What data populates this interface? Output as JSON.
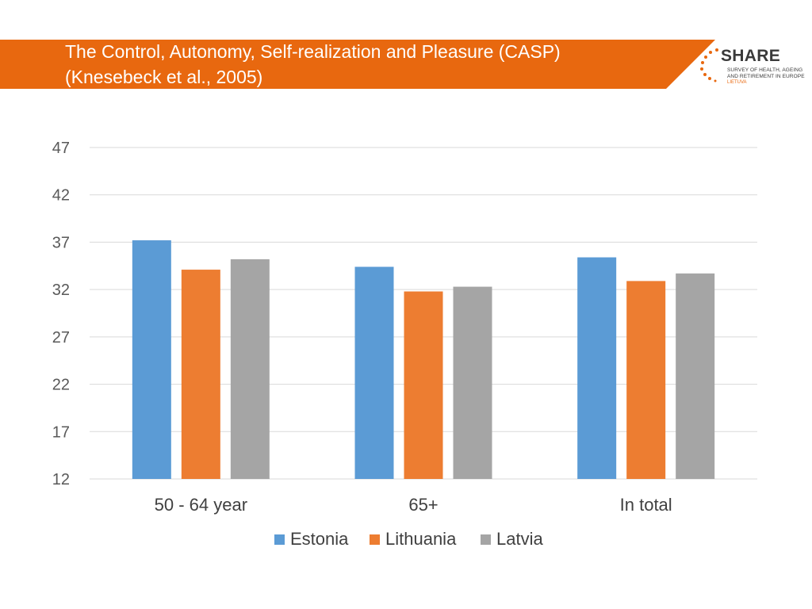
{
  "header": {
    "title_line1": "The Control, Autonomy, Self-realization and Pleasure (CASP)",
    "title_line2": "(Knesebeck et al., 2005)",
    "banner_color": "#e8680f"
  },
  "logo": {
    "name": "SHARE",
    "subtitle_line1": "SURVEY OF HEALTH, AGEING",
    "subtitle_line2": "AND RETIREMENT IN EUROPE",
    "country": "LIETUVA"
  },
  "chart_data": {
    "type": "bar",
    "title": "",
    "xlabel": "",
    "ylabel": "",
    "categories": [
      "50 - 64 year",
      "65+",
      "In total"
    ],
    "series": [
      {
        "name": "Estonia",
        "color": "#5b9bd5",
        "values": [
          37.2,
          34.4,
          35.4
        ]
      },
      {
        "name": "Lithuania",
        "color": "#ed7d31",
        "values": [
          34.1,
          31.8,
          32.9
        ]
      },
      {
        "name": "Latvia",
        "color": "#a5a5a5",
        "values": [
          35.2,
          32.3,
          33.7
        ]
      }
    ],
    "yticks": [
      12,
      17,
      22,
      27,
      32,
      37,
      42,
      47
    ],
    "ylim": [
      12,
      47
    ],
    "grid": true,
    "legend_position": "bottom"
  }
}
